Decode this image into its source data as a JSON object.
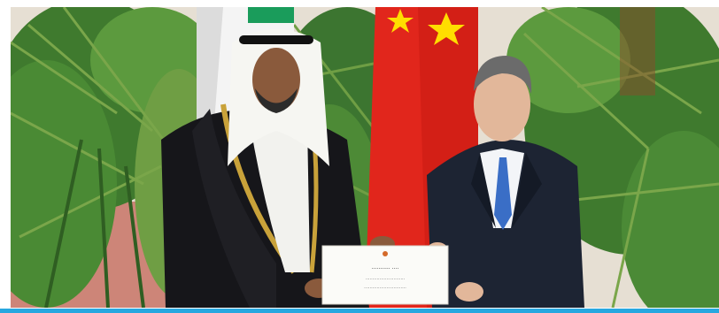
{
  "photo": {
    "document_text": [
      "...........  ....",
      "............................",
      ".............................."
    ],
    "colors": {
      "foliage": "#3f7a2e",
      "foliage_light": "#7aa64a",
      "wall": "#e8e1d6",
      "flag_red": "#e1261c",
      "flag_star": "#ffde00",
      "kuwait_green": "#1a9c5b",
      "kuwait_white": "#f4f4f4",
      "robe_black": "#16161a",
      "robe_trim": "#c9a23a",
      "suit_navy": "#1d2433",
      "tie_blue": "#3a6ec6",
      "accent_bar": "#28a8e0"
    }
  }
}
